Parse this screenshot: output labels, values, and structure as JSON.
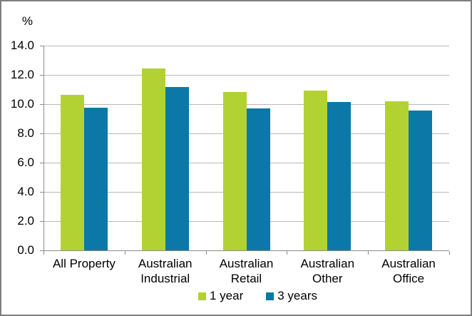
{
  "window": {
    "background": "#ffffff",
    "border_color": "#7f7f7f"
  },
  "chart_data": {
    "type": "bar",
    "title": "",
    "xlabel": "",
    "ylabel": "%",
    "categories": [
      "All Property",
      "Australian Industrial",
      "Australian Retail",
      "Australian Other",
      "Australian Office"
    ],
    "category_label_lines": [
      [
        "All Property"
      ],
      [
        "Australian",
        "Industrial"
      ],
      [
        "Australian",
        "Retail"
      ],
      [
        "Australian",
        "Other"
      ],
      [
        "Australian",
        "Office"
      ]
    ],
    "series": [
      {
        "name": "1 year",
        "color": "#b2d233",
        "values": [
          10.65,
          12.45,
          10.85,
          10.95,
          10.2
        ]
      },
      {
        "name": "3 years",
        "color": "#0b78a8",
        "values": [
          9.75,
          11.15,
          9.7,
          10.15,
          9.55
        ]
      }
    ],
    "ylim": [
      0,
      14
    ],
    "ytick_interval": 2,
    "ytick_labels": [
      "0.0",
      "2.0",
      "4.0",
      "6.0",
      "8.0",
      "10.0",
      "12.0",
      "14.0"
    ],
    "grid": true,
    "gridline_color": "#b8b8b8",
    "axis_color": "#8c8c8c",
    "text_color": "#000000",
    "legend_position": "bottom"
  }
}
